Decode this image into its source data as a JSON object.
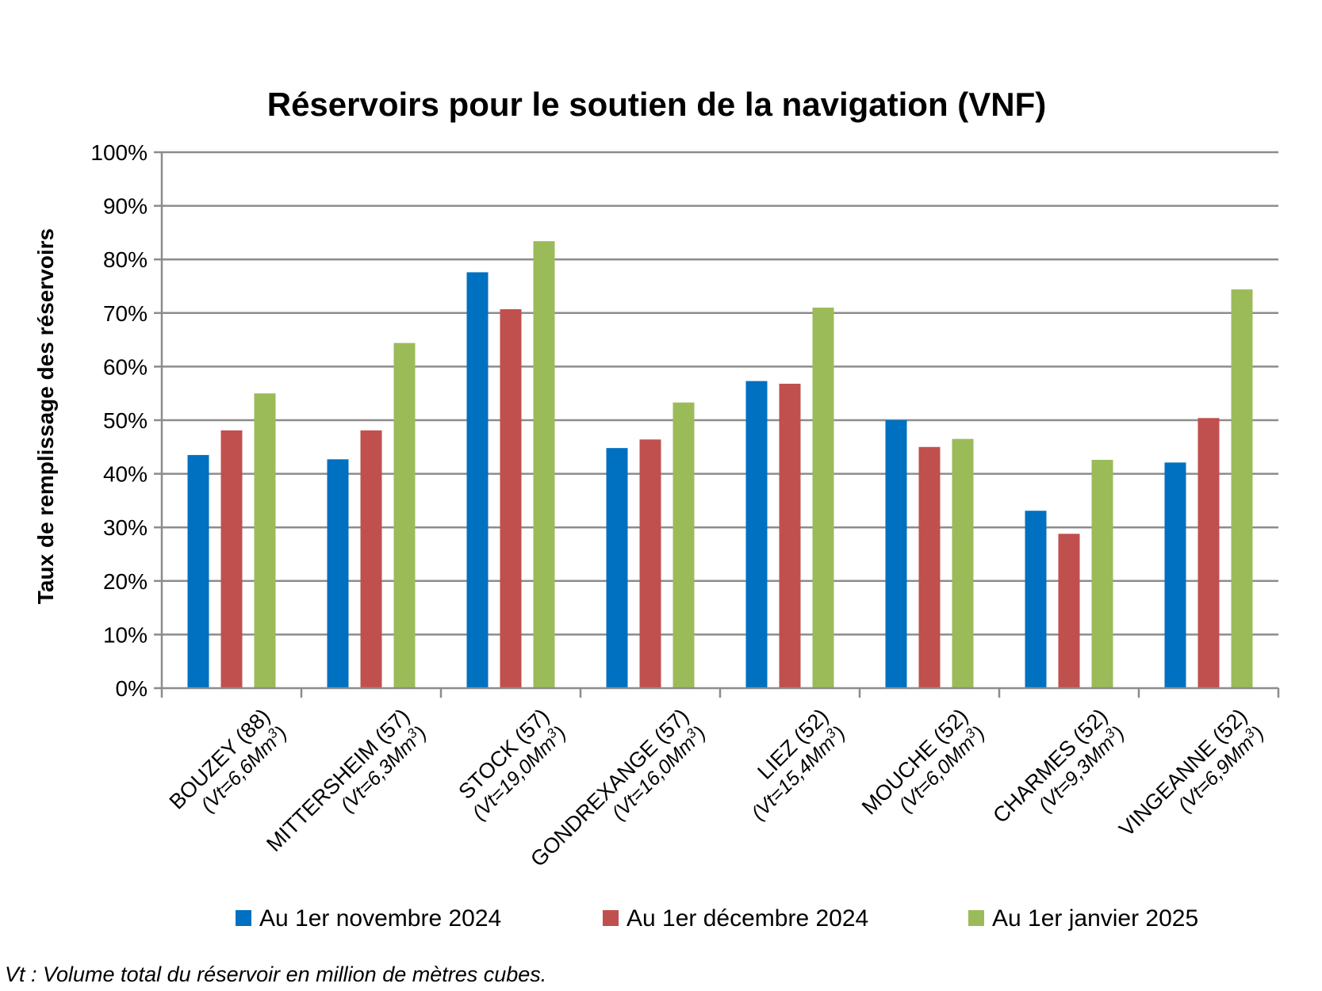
{
  "chart_data": {
    "type": "bar",
    "title": "Réservoirs pour le soutien de la navigation (VNF)",
    "ylabel": "Taux de remplissage des réservoirs",
    "xlabel": "",
    "ylim": [
      0,
      100
    ],
    "yticks": [
      "0%",
      "10%",
      "20%",
      "30%",
      "40%",
      "50%",
      "60%",
      "70%",
      "80%",
      "90%",
      "100%"
    ],
    "grid": true,
    "legend_position": "bottom",
    "categories": [
      {
        "name": "BOUZEY (88)",
        "sub": "(Vt=6,6Mm",
        "sup": "3",
        "close": ")"
      },
      {
        "name": "MITTERSHEIM (57)",
        "sub": "(Vt=6,3Mm",
        "sup": "3",
        "close": ")"
      },
      {
        "name": "STOCK (57)",
        "sub": "(Vt=19,0Mm",
        "sup": "3",
        "close": ")"
      },
      {
        "name": "GONDREXANGE (57)",
        "sub": "(Vt=16,0Mm",
        "sup": "3",
        "close": ")"
      },
      {
        "name": "LIEZ (52)",
        "sub": "(Vt=15,4Mm",
        "sup": "3",
        "close": ")"
      },
      {
        "name": "MOUCHE (52)",
        "sub": "(Vt=6,0Mm",
        "sup": "3",
        "close": ")"
      },
      {
        "name": "CHARMES (52)",
        "sub": "(Vt=9,3Mm",
        "sup": "3",
        "close": ")"
      },
      {
        "name": "VINGEANNE (52)",
        "sub": "(Vt=6,9Mm",
        "sup": "3",
        "close": ")"
      }
    ],
    "series": [
      {
        "name": "Au 1er novembre 2024",
        "color": "#0070c0",
        "values": [
          43.5,
          42.7,
          77.6,
          44.8,
          57.3,
          50.0,
          33.1,
          42.1
        ]
      },
      {
        "name": "Au 1er décembre 2024",
        "color": "#c0504d",
        "values": [
          48.1,
          48.1,
          70.7,
          46.4,
          56.8,
          45.0,
          28.8,
          50.4
        ]
      },
      {
        "name": "Au 1er janvier 2025",
        "color": "#9bbb59",
        "values": [
          55.0,
          64.4,
          83.4,
          53.3,
          71.0,
          46.5,
          42.6,
          74.4
        ]
      }
    ]
  },
  "footnote": "Vt : Volume total du réservoir en million de mètres cubes."
}
